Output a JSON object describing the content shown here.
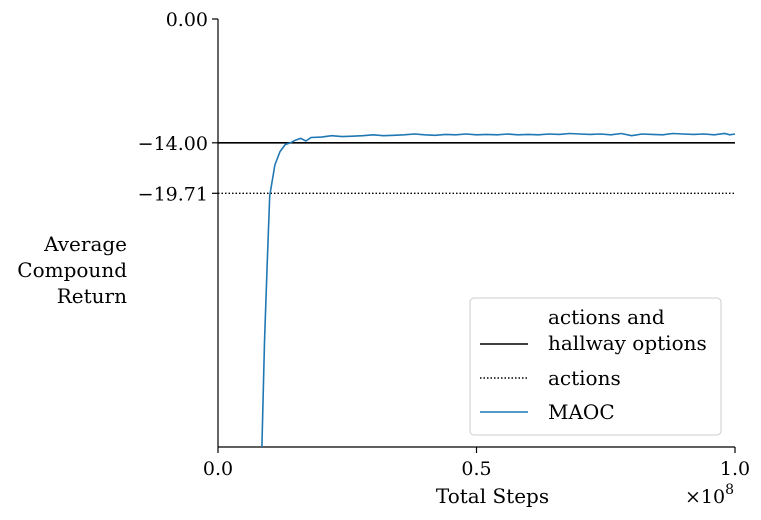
{
  "chart_data": {
    "type": "line",
    "title": "",
    "xlabel": "Total Steps",
    "ylabel": [
      "Average",
      "Compound",
      "Return"
    ],
    "x_multiplier_label": "×10^8",
    "xlim": [
      0.0,
      1.0
    ],
    "ylim": [
      -48.4,
      0.0
    ],
    "xticks": [
      0.0,
      0.5,
      1.0
    ],
    "xtick_labels": [
      "0.0",
      "0.5",
      "1.0"
    ],
    "yticks": [
      0.0,
      -14.0,
      -19.71
    ],
    "ytick_labels": [
      "0.00",
      "−14.00",
      "−19.71"
    ],
    "grid": false,
    "legend_position": "lower-right",
    "series": [
      {
        "name": "actions and\nhallway options",
        "kind": "hline",
        "y": -14.0,
        "style": "solid",
        "color": "#000000"
      },
      {
        "name": "actions",
        "kind": "hline",
        "y": -19.71,
        "style": "dotted",
        "color": "#000000"
      },
      {
        "name": "MAOC",
        "kind": "line",
        "style": "solid",
        "color": "#1f77b4",
        "x": [
          0.085,
          0.09,
          0.095,
          0.1,
          0.11,
          0.12,
          0.13,
          0.14,
          0.15,
          0.16,
          0.17,
          0.18,
          0.2,
          0.22,
          0.24,
          0.26,
          0.28,
          0.3,
          0.32,
          0.34,
          0.36,
          0.38,
          0.4,
          0.42,
          0.44,
          0.46,
          0.48,
          0.5,
          0.52,
          0.54,
          0.56,
          0.58,
          0.6,
          0.62,
          0.64,
          0.66,
          0.68,
          0.7,
          0.72,
          0.74,
          0.76,
          0.78,
          0.8,
          0.82,
          0.84,
          0.86,
          0.88,
          0.9,
          0.92,
          0.94,
          0.96,
          0.98,
          0.99,
          1.0
        ],
        "y": [
          -48.4,
          -36.5,
          -28.0,
          -20.0,
          -16.5,
          -15.0,
          -14.2,
          -14.0,
          -13.7,
          -13.5,
          -13.8,
          -13.4,
          -13.35,
          -13.2,
          -13.3,
          -13.25,
          -13.2,
          -13.1,
          -13.2,
          -13.15,
          -13.1,
          -13.0,
          -13.1,
          -13.15,
          -13.05,
          -13.1,
          -13.0,
          -13.1,
          -13.05,
          -13.1,
          -13.0,
          -13.1,
          -13.05,
          -13.1,
          -13.0,
          -13.05,
          -12.95,
          -13.0,
          -13.05,
          -13.0,
          -13.1,
          -12.95,
          -13.2,
          -13.0,
          -13.05,
          -13.1,
          -12.95,
          -13.0,
          -13.05,
          -13.0,
          -13.1,
          -12.95,
          -13.1,
          -13.0
        ]
      }
    ]
  }
}
